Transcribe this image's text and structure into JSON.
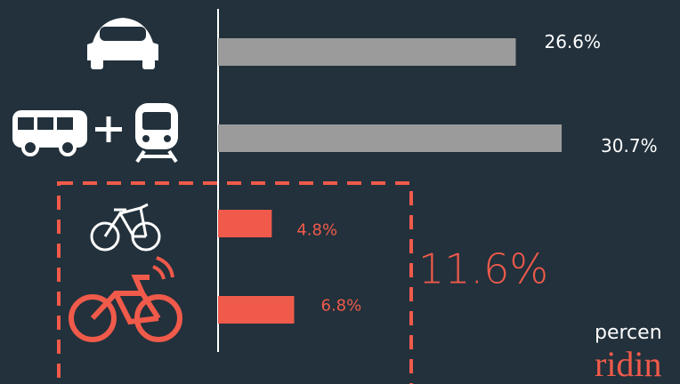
{
  "chart_data": {
    "type": "hbar",
    "categories": [
      null,
      null,
      null,
      null
    ],
    "values": [
      26.6,
      30.7,
      4.8,
      6.8
    ],
    "value_labels": [
      "26.6%",
      "30.7%",
      "4.8%",
      "6.8%"
    ],
    "colors": [
      "#9b9b9b",
      "#9b9b9b",
      "#f05a4a",
      "#f05a4a"
    ],
    "label_colors": [
      "#ffffff",
      "#ffffff",
      "#f05a4a",
      "#f05a4a"
    ],
    "xlim": [
      0,
      40
    ],
    "annotations": [
      "11.6%",
      "percen",
      "ridin"
    ]
  }
}
